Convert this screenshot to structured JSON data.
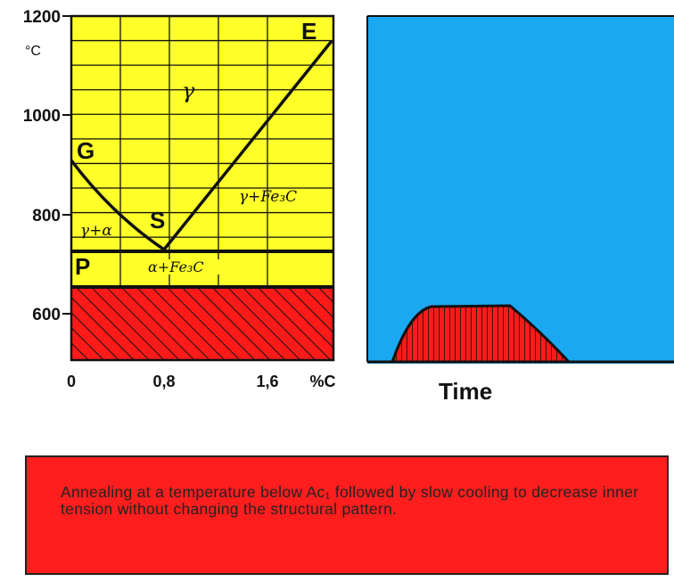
{
  "chart_data": [
    {
      "type": "phase-diagram",
      "y_ticks": [
        "1200",
        "1000",
        "800",
        "600"
      ],
      "y_unit": "°C",
      "x_ticks": [
        "0",
        "0,8",
        "1,6",
        "%C"
      ],
      "ylim": [
        500,
        1200
      ],
      "xlim": [
        0,
        2.1
      ],
      "points": [
        {
          "label": "G",
          "x": 0,
          "y": 910
        },
        {
          "label": "S",
          "x": 0.8,
          "y": 723
        },
        {
          "label": "E",
          "x": 2.06,
          "y": 1147
        },
        {
          "label": "P",
          "x": 0.02,
          "y": 723
        }
      ],
      "regions": [
        "γ",
        "γ+Fe₃C",
        "γ+α",
        "α+Fe₃C"
      ],
      "process_band_top": 650,
      "colors": {
        "austenite": "#ffff2a",
        "process": "#ff1a1a",
        "line": "#111111"
      }
    },
    {
      "type": "area",
      "xlabel": "Time",
      "profile": "heat – hold – slow cool",
      "colors": {
        "background": "#1aa8f0",
        "fill": "#ff1a1a"
      }
    }
  ],
  "caption": "Annealing at a temperature below Ac₁ followed by slow cooling to decrease inner tension without changing the structural pattern."
}
